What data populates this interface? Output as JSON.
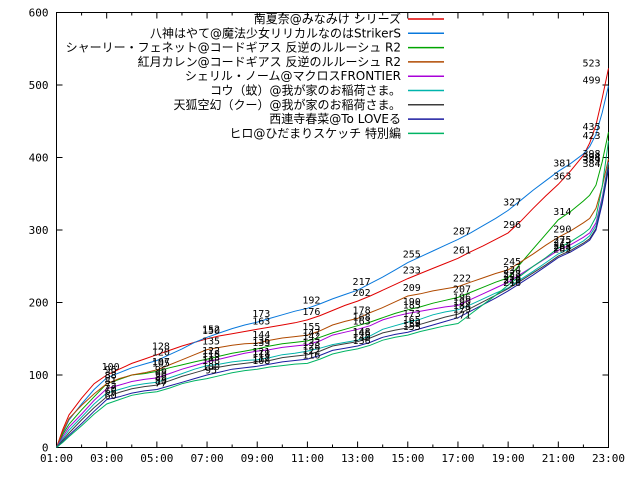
{
  "chart": {
    "background": "#ffffff",
    "axis_color": "#000000",
    "text_color": "#000000",
    "y_ticks": [
      "0",
      "100",
      "200",
      "300",
      "400",
      "500",
      "600"
    ],
    "x_ticks": [
      "01:00",
      "03:00",
      "05:00",
      "07:00",
      "09:00",
      "11:00",
      "13:00",
      "15:00",
      "17:00",
      "19:00",
      "21:00",
      "23:00"
    ],
    "legend_position": "top-right-inside"
  },
  "chart_data": {
    "type": "line",
    "title": "",
    "xlabel": "",
    "ylabel": "",
    "ylim": [
      0,
      600
    ],
    "xlim_hours": [
      1,
      23
    ],
    "grid": false,
    "x_hours": [
      1,
      1.25,
      1.5,
      2,
      2.5,
      3,
      3.5,
      4,
      4.5,
      5,
      5.5,
      6,
      6.5,
      7,
      7.5,
      8,
      8.5,
      9,
      9.5,
      10,
      10.5,
      11,
      11.5,
      12,
      12.5,
      13,
      13.5,
      14,
      14.5,
      15,
      15.5,
      16,
      16.5,
      17,
      17.5,
      18,
      18.5,
      19,
      19.5,
      20,
      20.5,
      21,
      21.5,
      22,
      22.25,
      22.5,
      22.75,
      23
    ],
    "label_hours": [
      3,
      5,
      7,
      9,
      11,
      13,
      15,
      17,
      19,
      21,
      23
    ],
    "series": [
      {
        "name": "南夏奈@みなみけ シリーズ",
        "color": "#e00000",
        "values": [
          0,
          25,
          45,
          68,
          88,
          100,
          108,
          116,
          122,
          128,
          134,
          140,
          145,
          150,
          154,
          157,
          160,
          163,
          166,
          169,
          172,
          176,
          182,
          189,
          196,
          202,
          209,
          217,
          225,
          233,
          240,
          247,
          254,
          261,
          270,
          278,
          287,
          296,
          312,
          330,
          347,
          363,
          382,
          403,
          420,
          445,
          482,
          523
        ]
      },
      {
        "name": "八神はやて@魔法少女リリカルなのはStrikerS",
        "color": "#0878dc",
        "values": [
          0,
          20,
          38,
          60,
          80,
          96,
          103,
          110,
          115,
          120,
          128,
          136,
          145,
          152,
          158,
          164,
          169,
          173,
          178,
          183,
          188,
          192,
          198,
          205,
          211,
          217,
          226,
          235,
          245,
          255,
          263,
          271,
          279,
          287,
          296,
          306,
          316,
          327,
          341,
          355,
          368,
          381,
          392,
          405,
          415,
          432,
          462,
          499
        ]
      },
      {
        "name": "シャーリー・フェネット@コードギアス 反逆のルルーシュ R2",
        "color": "#00a400",
        "values": [
          0,
          18,
          32,
          52,
          70,
          88,
          94,
          100,
          102,
          105,
          110,
          114,
          118,
          122,
          126,
          130,
          133,
          136,
          140,
          143,
          145,
          147,
          152,
          158,
          163,
          168,
          173,
          179,
          185,
          190,
          194,
          199,
          203,
          207,
          214,
          221,
          228,
          234,
          254,
          274,
          294,
          314,
          326,
          340,
          348,
          362,
          394,
          435
        ]
      },
      {
        "name": "紅月カレン@コードギアス 反逆のルルーシュ R2",
        "color": "#b04a00",
        "values": [
          0,
          22,
          40,
          58,
          74,
          88,
          95,
          100,
          103,
          107,
          114,
          121,
          128,
          135,
          138,
          141,
          143,
          144,
          148,
          151,
          153,
          155,
          161,
          169,
          174,
          178,
          186,
          193,
          201,
          209,
          212,
          216,
          219,
          222,
          228,
          234,
          240,
          245,
          256,
          267,
          279,
          290,
          299,
          310,
          316,
          330,
          360,
          398
        ]
      },
      {
        "name": "シェリル・ノーム@マクロスFRONTIER",
        "color": "#a800d8",
        "values": [
          0,
          15,
          28,
          46,
          65,
          81,
          86,
          91,
          94,
          96,
          102,
          108,
          113,
          118,
          122,
          126,
          130,
          133,
          135,
          138,
          140,
          142,
          147,
          155,
          159,
          163,
          168,
          176,
          181,
          185,
          188,
          191,
          194,
          196,
          204,
          212,
          220,
          228,
          239,
          250,
          261,
          272,
          280,
          290,
          296,
          310,
          345,
          394
        ]
      },
      {
        "name": "コウ（蚊）@我が家のお稲荷さま。",
        "color": "#00b4ac",
        "values": [
          0,
          12,
          24,
          42,
          60,
          75,
          80,
          85,
          88,
          90,
          96,
          102,
          108,
          113,
          115,
          118,
          120,
          121,
          124,
          128,
          130,
          133,
          137,
          142,
          145,
          148,
          154,
          163,
          168,
          173,
          177,
          183,
          187,
          190,
          197,
          205,
          213,
          220,
          232,
          243,
          255,
          267,
          275,
          285,
          292,
          306,
          342,
          393
        ]
      },
      {
        "name": "天狐空幻（クー）@我が家のお稲荷さま。",
        "color": "#3c3c3c",
        "values": [
          0,
          10,
          20,
          38,
          55,
          70,
          76,
          81,
          84,
          86,
          92,
          98,
          103,
          108,
          111,
          114,
          116,
          118,
          120,
          124,
          126,
          128,
          133,
          140,
          143,
          146,
          151,
          158,
          162,
          165,
          170,
          175,
          180,
          184,
          192,
          201,
          210,
          219,
          230,
          241,
          252,
          264,
          272,
          282,
          288,
          302,
          338,
          389
        ]
      },
      {
        "name": "西連寺春菜@To LOVEる",
        "color": "#1c1ca0",
        "values": [
          0,
          8,
          17,
          33,
          50,
          66,
          70,
          75,
          78,
          80,
          85,
          90,
          95,
          100,
          104,
          108,
          110,
          112,
          115,
          118,
          120,
          122,
          127,
          134,
          137,
          140,
          145,
          152,
          156,
          159,
          164,
          169,
          174,
          179,
          188,
          197,
          206,
          216,
          227,
          238,
          250,
          262,
          270,
          280,
          286,
          300,
          336,
          384
        ]
      },
      {
        "name": "ヒロ@ひだまりスケッチ 特別編",
        "color": "#00b464",
        "values": [
          0,
          7,
          15,
          30,
          46,
          60,
          66,
          72,
          75,
          77,
          82,
          88,
          92,
          95,
          99,
          103,
          106,
          108,
          111,
          113,
          115,
          116,
          122,
          129,
          133,
          136,
          141,
          148,
          152,
          155,
          160,
          164,
          168,
          171,
          184,
          197,
          210,
          224,
          237,
          250,
          262,
          275,
          284,
          295,
          302,
          318,
          360,
          423
        ]
      }
    ]
  }
}
